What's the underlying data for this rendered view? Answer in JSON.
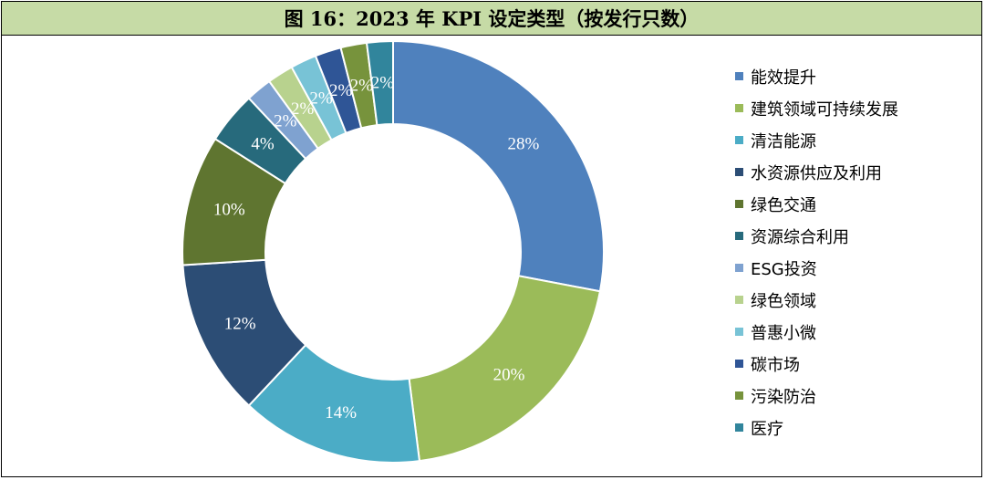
{
  "title": "图 16：2023 年 KPI 设定类型（按发行只数）",
  "chart_data": {
    "type": "pie",
    "variant": "donut",
    "legend_position": "right",
    "categories": [
      "能效提升",
      "建筑领域可持续发展",
      "清洁能源",
      "水资源供应及利用",
      "绿色交通",
      "资源综合利用",
      "ESG投资",
      "绿色领域",
      "普惠小微",
      "碳市场",
      "污染防治",
      "医疗"
    ],
    "values": [
      28,
      20,
      14,
      12,
      10,
      4,
      2,
      2,
      2,
      2,
      2,
      2
    ],
    "labels": [
      "28%",
      "20%",
      "14%",
      "12%",
      "10%",
      "4%",
      "2%",
      "2%",
      "2%",
      "2%",
      "2%",
      "2%"
    ],
    "colors": [
      "#4f81bd",
      "#9bbb59",
      "#4bacc6",
      "#2c4d75",
      "#5f7530",
      "#276a7c",
      "#7fa2d0",
      "#b8d28e",
      "#78c3d6",
      "#2f5596",
      "#77933c",
      "#31859c"
    ]
  }
}
